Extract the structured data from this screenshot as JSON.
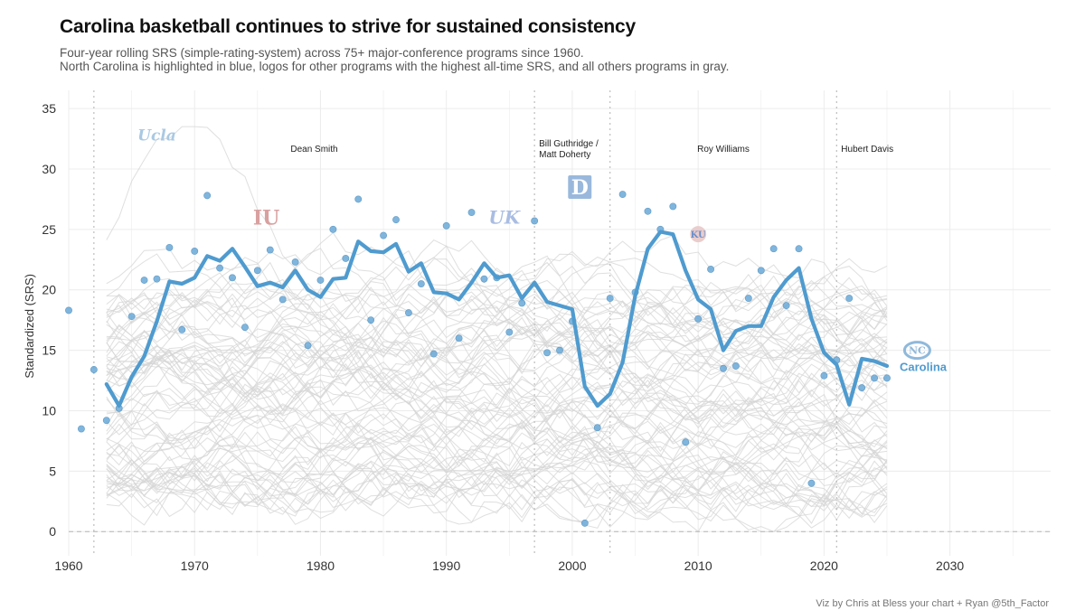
{
  "header": {
    "title": "Carolina basketball continues to strive for sustained consistency",
    "subtitle_line1": "Four-year rolling SRS (simple-rating-system) across 75+ major-conference programs since 1960.",
    "subtitle_line2": "North Carolina is highlighted in blue, logos for other programs with the highest all-time SRS, and all others programs in gray."
  },
  "caption": "Viz by Chris at Bless your chart + Ryan @5th_Factor",
  "colors": {
    "highlight": "#4f9bcf",
    "points": "#6aaad8",
    "background_lines": "#d4d4d4",
    "grid": "#ececec",
    "eras": "#bdbdbd"
  },
  "chart_data": {
    "type": "line",
    "title": "Carolina basketball continues to strive for sustained consistency",
    "xlabel": "",
    "ylabel": "Standardized (SRS)",
    "xlim": [
      1960,
      2038
    ],
    "ylim": [
      -2,
      36.5
    ],
    "x_ticks": [
      1960,
      1970,
      1980,
      1990,
      2000,
      2010,
      2020,
      2030
    ],
    "y_ticks": [
      0,
      5,
      10,
      15,
      20,
      25,
      30,
      35
    ],
    "grid": true,
    "highlight_series": {
      "name": "Carolina",
      "x": [
        1963,
        1964,
        1965,
        1966,
        1967,
        1968,
        1969,
        1970,
        1971,
        1972,
        1973,
        1974,
        1975,
        1976,
        1977,
        1978,
        1979,
        1980,
        1981,
        1982,
        1983,
        1984,
        1985,
        1986,
        1987,
        1988,
        1989,
        1990,
        1991,
        1992,
        1993,
        1994,
        1995,
        1996,
        1997,
        1998,
        1999,
        2000,
        2001,
        2002,
        2003,
        2004,
        2005,
        2006,
        2007,
        2008,
        2009,
        2010,
        2011,
        2012,
        2013,
        2014,
        2015,
        2016,
        2017,
        2018,
        2019,
        2020,
        2021,
        2022,
        2023,
        2024,
        2025
      ],
      "values": [
        12.2,
        10.4,
        12.8,
        14.5,
        17.4,
        20.7,
        20.5,
        21.0,
        22.8,
        22.4,
        23.4,
        21.9,
        20.3,
        20.6,
        20.2,
        21.6,
        20.0,
        19.4,
        20.9,
        21.0,
        24.0,
        23.2,
        23.1,
        23.8,
        21.5,
        22.2,
        19.8,
        19.7,
        19.2,
        20.6,
        22.2,
        21.0,
        21.2,
        19.3,
        20.6,
        19.0,
        18.7,
        18.4,
        12.0,
        10.4,
        11.4,
        14.0,
        19.5,
        23.4,
        24.8,
        24.6,
        21.6,
        19.2,
        18.4,
        15.0,
        16.6,
        17.0,
        17.0,
        19.4,
        20.8,
        21.8,
        17.6,
        14.8,
        13.8,
        10.5,
        14.3,
        14.1,
        13.7
      ]
    },
    "scatter_points": {
      "name": "Season SRS",
      "x": [
        1960,
        1961,
        1962,
        1963,
        1964,
        1965,
        1966,
        1967,
        1968,
        1969,
        1970,
        1971,
        1972,
        1973,
        1974,
        1975,
        1976,
        1977,
        1978,
        1979,
        1980,
        1981,
        1982,
        1983,
        1984,
        1985,
        1986,
        1987,
        1988,
        1989,
        1990,
        1991,
        1992,
        1993,
        1994,
        1995,
        1996,
        1997,
        1998,
        1999,
        2000,
        2001,
        2002,
        2003,
        2004,
        2005,
        2006,
        2007,
        2008,
        2009,
        2010,
        2011,
        2012,
        2013,
        2014,
        2015,
        2016,
        2017,
        2018,
        2019,
        2020,
        2021,
        2022,
        2023,
        2024,
        2025
      ],
      "values": [
        18.3,
        8.5,
        13.4,
        9.2,
        10.2,
        17.8,
        20.8,
        20.9,
        23.5,
        16.7,
        23.2,
        27.8,
        21.8,
        21.0,
        16.9,
        21.6,
        23.3,
        19.2,
        22.3,
        15.4,
        20.8,
        25.0,
        22.6,
        27.5,
        17.5,
        24.5,
        25.8,
        18.1,
        20.5,
        14.7,
        25.3,
        16.0,
        26.4,
        20.9,
        21.0,
        16.5,
        18.9,
        25.7,
        14.8,
        15.0,
        17.4,
        0.7,
        8.6,
        19.3,
        27.9,
        19.8,
        26.5,
        25.0,
        26.9,
        7.4,
        17.6,
        21.7,
        13.5,
        13.7,
        19.3,
        21.6,
        23.4,
        18.7,
        23.4,
        4.0,
        12.9,
        14.2,
        19.3,
        11.9,
        12.7,
        12.7
      ]
    },
    "background_series_count": 75,
    "eras": [
      {
        "label": "Dean Smith",
        "start": 1962
      },
      {
        "label": "Bill Guthridge /",
        "label2": "Matt Doherty",
        "start": 1997
      },
      {
        "label": "Roy Williams",
        "start": 2003
      },
      {
        "label": "Hubert Davis",
        "start": 2021
      }
    ],
    "program_logos": [
      {
        "name": "UCLA",
        "text": "Ucla",
        "x": 1967,
        "y": 32.8,
        "color": "#a9c9e3"
      },
      {
        "name": "Indiana",
        "text": "IU",
        "x": 1975.7,
        "y": 26.0,
        "color": "#d9a0a0"
      },
      {
        "name": "Kentucky",
        "text": "UK",
        "x": 1994.6,
        "y": 26.0,
        "color": "#a9bde3"
      },
      {
        "name": "Duke",
        "text": "D",
        "x": 2000.6,
        "y": 28.5,
        "color": "#8fb0d8"
      },
      {
        "name": "Kansas",
        "text": "KU",
        "x": 2010,
        "y": 24.6,
        "color": "#c7b7d8"
      },
      {
        "name": "North Carolina",
        "text": "NC",
        "x": 2027.4,
        "y": 15.0,
        "color": "#8fb9db"
      }
    ],
    "highlight_label": "Carolina"
  }
}
